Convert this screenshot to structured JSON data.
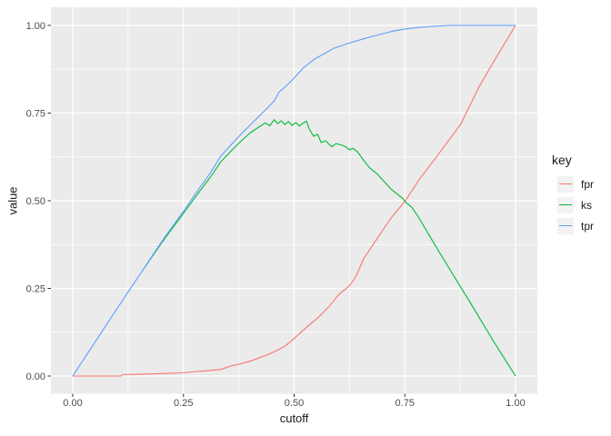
{
  "theme": {
    "figure_bg": "#FFFFFF",
    "panel_bg": "#EBEBEB",
    "grid_color": "#FFFFFF",
    "tick_label_color": "#4D4D4D",
    "tick_mark_color": "#333333",
    "axis_title_color": "#1A1A1A",
    "legend_key_bg": "#F2F2F2"
  },
  "chart_data": {
    "type": "line",
    "title": "",
    "xlabel": "cutoff",
    "ylabel": "value",
    "legend_title": "key",
    "legend_position": "right",
    "grid": "major+minor",
    "xlim": [
      0,
      1
    ],
    "ylim": [
      0,
      1
    ],
    "x_tick_values": [
      0,
      0.25,
      0.5,
      0.75,
      1
    ],
    "x_tick_labels": [
      "0.00",
      "0.25",
      "0.50",
      "0.75",
      "1.00"
    ],
    "y_tick_values": [
      0,
      0.25,
      0.5,
      0.75,
      1
    ],
    "y_tick_labels": [
      "0.00",
      "0.25",
      "0.50",
      "0.75",
      "1.00"
    ],
    "x_minor_ticks": [
      0.125,
      0.375,
      0.625,
      0.875
    ],
    "y_minor_ticks": [
      0.125,
      0.375,
      0.625,
      0.875
    ],
    "series": [
      {
        "name": "fpr",
        "color": "#F8766D",
        "points": [
          [
            0.0,
            0.0
          ],
          [
            0.108,
            0.0
          ],
          [
            0.113,
            0.004
          ],
          [
            0.15,
            0.005
          ],
          [
            0.2,
            0.007
          ],
          [
            0.246,
            0.009
          ],
          [
            0.28,
            0.013
          ],
          [
            0.31,
            0.016
          ],
          [
            0.335,
            0.019
          ],
          [
            0.355,
            0.028
          ],
          [
            0.376,
            0.034
          ],
          [
            0.4,
            0.042
          ],
          [
            0.417,
            0.05
          ],
          [
            0.44,
            0.061
          ],
          [
            0.458,
            0.071
          ],
          [
            0.48,
            0.086
          ],
          [
            0.5,
            0.107
          ],
          [
            0.52,
            0.13
          ],
          [
            0.54,
            0.152
          ],
          [
            0.555,
            0.168
          ],
          [
            0.58,
            0.2
          ],
          [
            0.6,
            0.231
          ],
          [
            0.626,
            0.259
          ],
          [
            0.64,
            0.285
          ],
          [
            0.657,
            0.335
          ],
          [
            0.672,
            0.363
          ],
          [
            0.698,
            0.412
          ],
          [
            0.72,
            0.452
          ],
          [
            0.751,
            0.5
          ],
          [
            0.784,
            0.563
          ],
          [
            0.821,
            0.624
          ],
          [
            0.876,
            0.718
          ],
          [
            0.918,
            0.826
          ],
          [
            0.95,
            0.895
          ],
          [
            1.0,
            1.0
          ]
        ]
      },
      {
        "name": "ks",
        "color": "#00BA38",
        "points": [
          [
            0.156,
            0.298
          ],
          [
            0.18,
            0.342
          ],
          [
            0.21,
            0.396
          ],
          [
            0.25,
            0.464
          ],
          [
            0.28,
            0.516
          ],
          [
            0.31,
            0.566
          ],
          [
            0.335,
            0.612
          ],
          [
            0.36,
            0.645
          ],
          [
            0.38,
            0.67
          ],
          [
            0.4,
            0.693
          ],
          [
            0.42,
            0.71
          ],
          [
            0.435,
            0.722
          ],
          [
            0.445,
            0.714
          ],
          [
            0.455,
            0.731
          ],
          [
            0.463,
            0.72
          ],
          [
            0.471,
            0.728
          ],
          [
            0.479,
            0.717
          ],
          [
            0.487,
            0.726
          ],
          [
            0.495,
            0.715
          ],
          [
            0.504,
            0.723
          ],
          [
            0.512,
            0.713
          ],
          [
            0.52,
            0.721
          ],
          [
            0.528,
            0.727
          ],
          [
            0.534,
            0.705
          ],
          [
            0.544,
            0.684
          ],
          [
            0.553,
            0.69
          ],
          [
            0.561,
            0.666
          ],
          [
            0.571,
            0.671
          ],
          [
            0.585,
            0.654
          ],
          [
            0.595,
            0.663
          ],
          [
            0.609,
            0.658
          ],
          [
            0.616,
            0.654
          ],
          [
            0.626,
            0.645
          ],
          [
            0.632,
            0.65
          ],
          [
            0.643,
            0.64
          ],
          [
            0.657,
            0.615
          ],
          [
            0.671,
            0.593
          ],
          [
            0.688,
            0.576
          ],
          [
            0.704,
            0.554
          ],
          [
            0.719,
            0.533
          ],
          [
            0.732,
            0.52
          ],
          [
            0.745,
            0.507
          ],
          [
            0.753,
            0.495
          ],
          [
            0.766,
            0.481
          ],
          [
            0.78,
            0.455
          ],
          [
            0.82,
            0.37
          ],
          [
            0.856,
            0.295
          ],
          [
            0.9,
            0.205
          ],
          [
            0.95,
            0.1
          ],
          [
            1.0,
            0.0
          ]
        ]
      },
      {
        "name": "tpr",
        "color": "#619CFF",
        "points": [
          [
            0.0,
            0.0
          ],
          [
            0.04,
            0.077
          ],
          [
            0.08,
            0.154
          ],
          [
            0.12,
            0.23
          ],
          [
            0.156,
            0.298
          ],
          [
            0.18,
            0.344
          ],
          [
            0.21,
            0.4
          ],
          [
            0.25,
            0.47
          ],
          [
            0.28,
            0.525
          ],
          [
            0.31,
            0.578
          ],
          [
            0.335,
            0.628
          ],
          [
            0.36,
            0.663
          ],
          [
            0.38,
            0.69
          ],
          [
            0.4,
            0.715
          ],
          [
            0.42,
            0.74
          ],
          [
            0.44,
            0.765
          ],
          [
            0.455,
            0.785
          ],
          [
            0.466,
            0.81
          ],
          [
            0.48,
            0.825
          ],
          [
            0.5,
            0.85
          ],
          [
            0.52,
            0.878
          ],
          [
            0.545,
            0.903
          ],
          [
            0.57,
            0.921
          ],
          [
            0.59,
            0.935
          ],
          [
            0.62,
            0.948
          ],
          [
            0.657,
            0.962
          ],
          [
            0.69,
            0.973
          ],
          [
            0.72,
            0.983
          ],
          [
            0.75,
            0.99
          ],
          [
            0.78,
            0.994
          ],
          [
            0.81,
            0.997
          ],
          [
            0.85,
            1.0
          ],
          [
            1.0,
            1.0
          ]
        ]
      }
    ]
  }
}
